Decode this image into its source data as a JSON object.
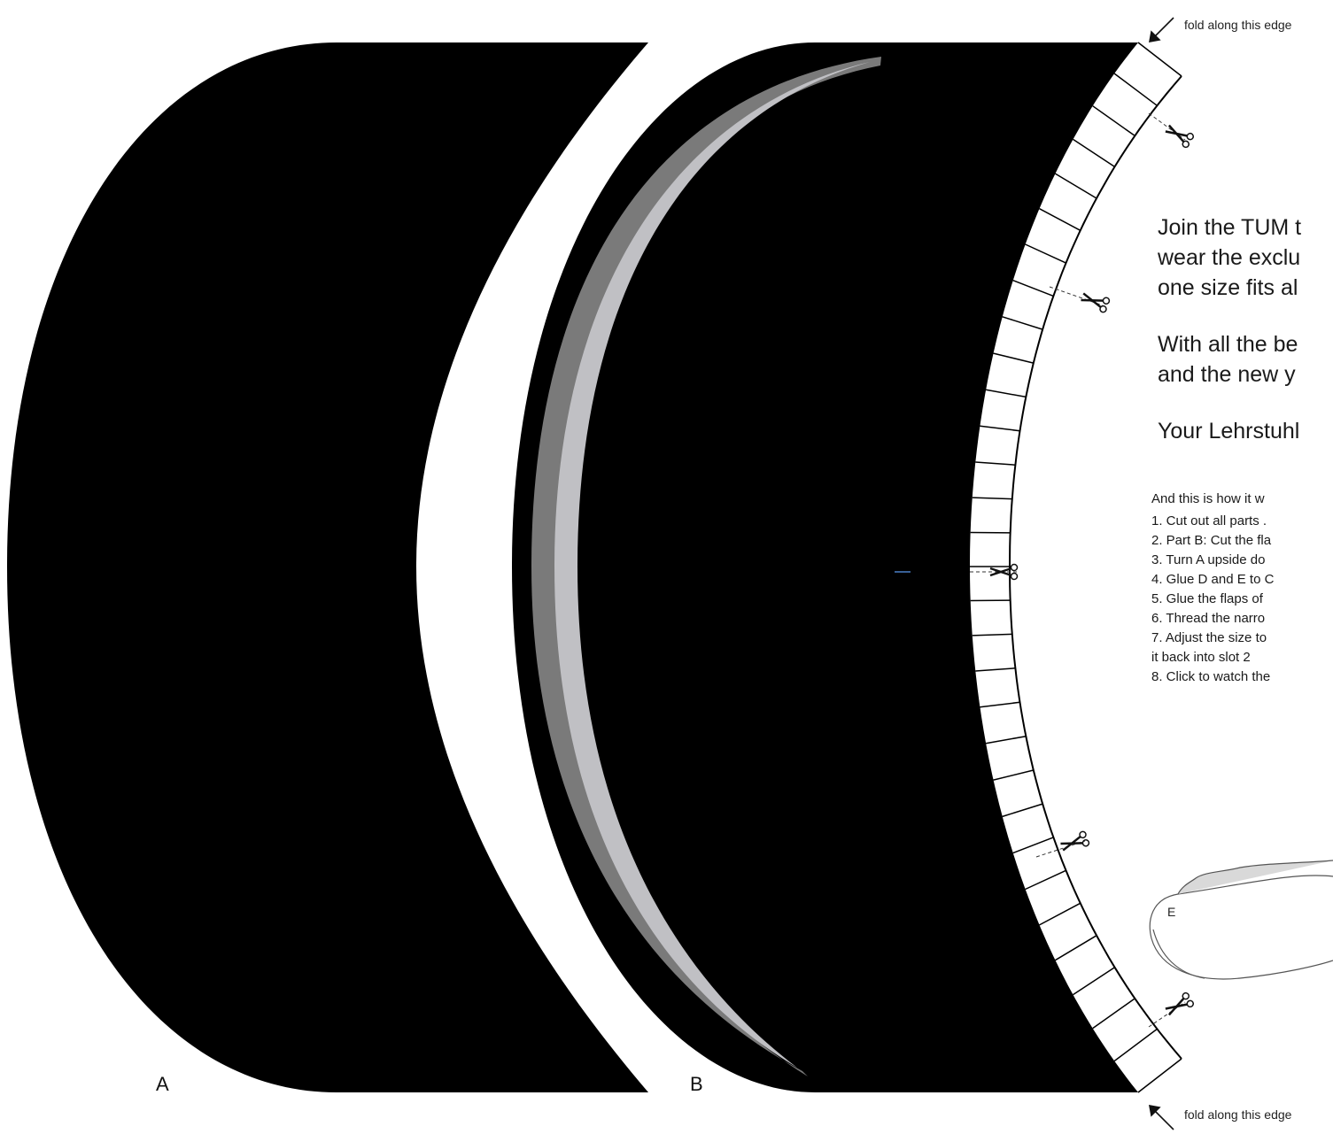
{
  "part_labels": {
    "a": "A",
    "b": "B",
    "e": "E"
  },
  "fold_notes": {
    "top": "fold along this edge",
    "bottom": "fold along this edge"
  },
  "message": [
    "Join the TUM t",
    "wear the exclu",
    "one size fits al",
    "With all the be",
    "and the new y",
    "Your Lehrstuhl"
  ],
  "instructions": [
    "And this is how it w",
    "1. Cut out all parts .",
    "2. Part B: Cut the fla",
    "3. Turn A upside do",
    "4. Glue D and E to C",
    "5. Glue the flaps of",
    "6. Thread the narro",
    "7. Adjust the size to",
    "   it back into slot 2",
    "8. Click to watch the"
  ],
  "colors": {
    "piece_fill": "#000000",
    "band_dark": "#7a7a7a",
    "band_light": "#c0c0c4",
    "flap_stroke": "#000000",
    "marker": "#4a7fc8"
  },
  "icons": {
    "scissors": "scissors-icon",
    "arrow": "arrow-icon"
  }
}
